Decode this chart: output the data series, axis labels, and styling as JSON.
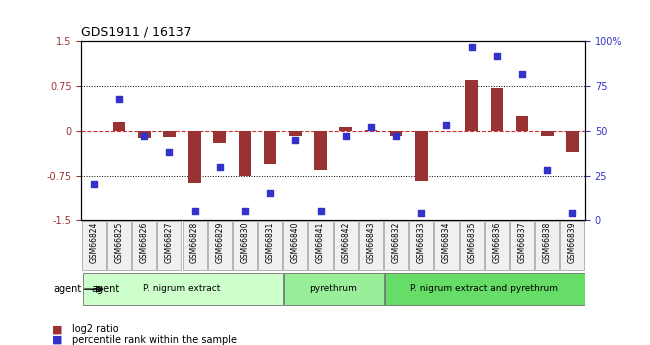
{
  "title": "GDS1911 / 16137",
  "samples": [
    "GSM66824",
    "GSM66825",
    "GSM66826",
    "GSM66827",
    "GSM66828",
    "GSM66829",
    "GSM66830",
    "GSM66831",
    "GSM66840",
    "GSM66841",
    "GSM66842",
    "GSM66843",
    "GSM66832",
    "GSM66833",
    "GSM66834",
    "GSM66835",
    "GSM66836",
    "GSM66837",
    "GSM66838",
    "GSM66839"
  ],
  "log2_ratio": [
    0.0,
    0.15,
    -0.12,
    -0.1,
    -0.87,
    -0.2,
    -0.75,
    -0.55,
    -0.08,
    -0.65,
    0.07,
    0.02,
    -0.08,
    -0.85,
    0.0,
    0.85,
    0.72,
    0.25,
    -0.08,
    -0.35
  ],
  "pct_rank": [
    20,
    68,
    47,
    38,
    5,
    30,
    5,
    15,
    45,
    5,
    47,
    52,
    47,
    4,
    53,
    97,
    92,
    82,
    28,
    4
  ],
  "groups": [
    {
      "label": "P. nigrum extract",
      "start": 0,
      "end": 8,
      "color": "#ccffcc"
    },
    {
      "label": "pyrethrum",
      "start": 8,
      "end": 12,
      "color": "#99ee99"
    },
    {
      "label": "P. nigrum extract and pyrethrum",
      "start": 12,
      "end": 20,
      "color": "#66dd66"
    }
  ],
  "ylim_left": [
    -1.5,
    1.5
  ],
  "ylim_right": [
    0,
    100
  ],
  "bar_color": "#993333",
  "dot_color": "#3333cc",
  "hline_color": "#cc3333",
  "grid_color": "#000000",
  "bg_color": "#f0f0f0",
  "agent_label": "agent",
  "legend_items": [
    {
      "label": "log2 ratio",
      "color": "#993333"
    },
    {
      "label": "percentile rank within the sample",
      "color": "#3333cc"
    }
  ]
}
